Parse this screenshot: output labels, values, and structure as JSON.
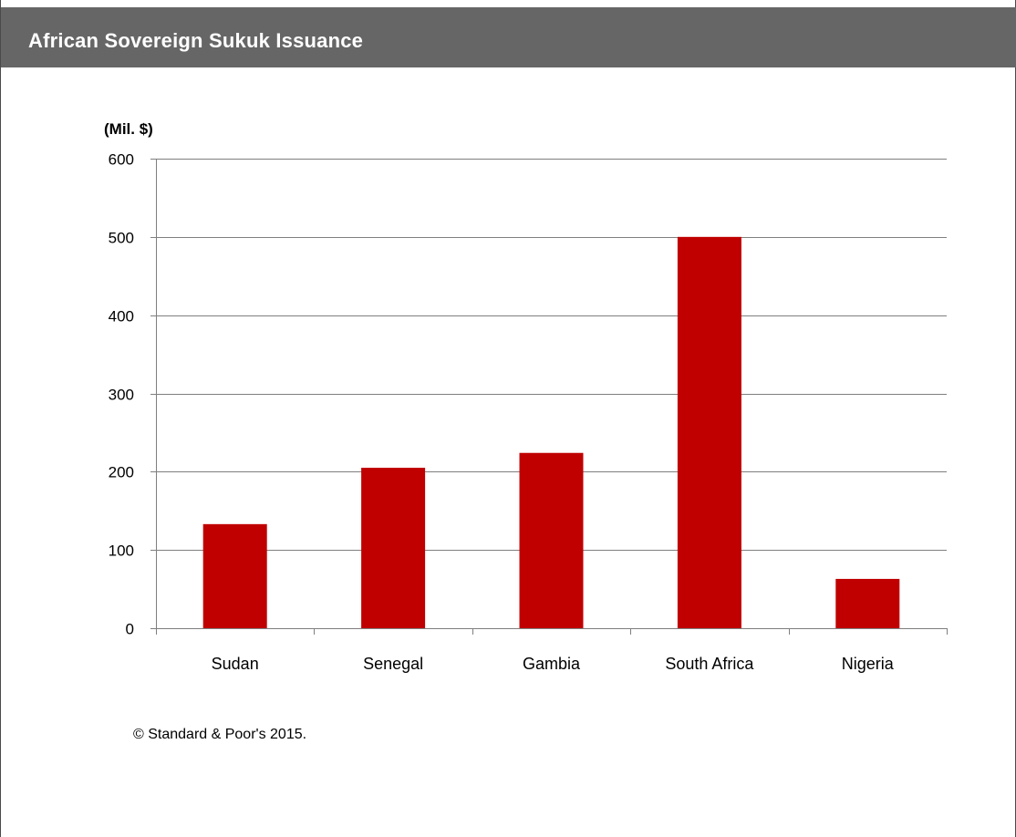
{
  "title": "African Sovereign Sukuk Issuance",
  "footnote": "© Standard & Poor's 2015.",
  "colors": {
    "title_bar": "#666666",
    "bar": "#c00000",
    "gridline": "#7f7f7f"
  },
  "chart_data": {
    "type": "bar",
    "title": "",
    "ylabel": "(Mil. $)",
    "xlabel": "",
    "categories": [
      "Sudan",
      "Senegal",
      "Gambia",
      "South Africa",
      "Nigeria"
    ],
    "values": [
      133,
      205,
      224,
      500,
      63
    ],
    "ylim": [
      0,
      600
    ],
    "yticks": [
      0,
      100,
      200,
      300,
      400,
      500,
      600
    ],
    "ytick_labels": [
      "0",
      "100",
      "200",
      "300",
      "400",
      "500",
      "600"
    ],
    "grid": true,
    "legend": "none"
  }
}
